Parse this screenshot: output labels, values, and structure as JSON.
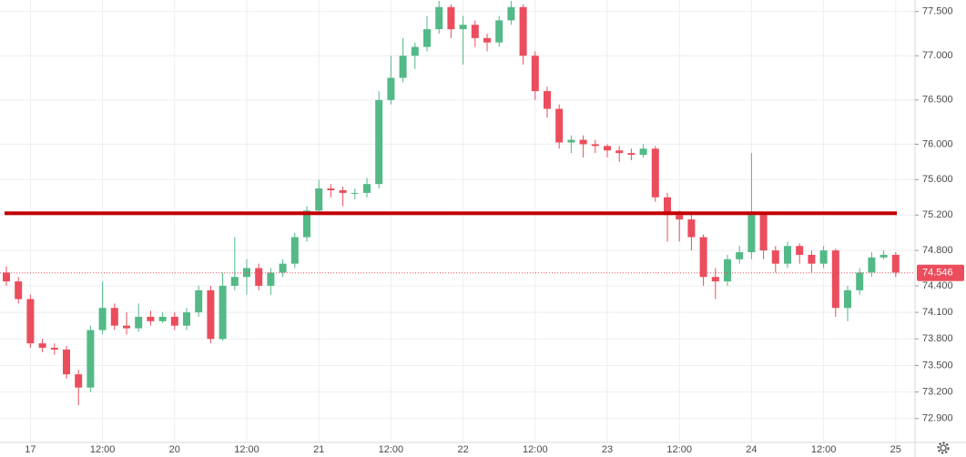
{
  "chart_data": {
    "type": "candlestick",
    "categories": [
      null,
      null,
      "17",
      null,
      null,
      null,
      null,
      null,
      "12:00",
      null,
      null,
      null,
      null,
      null,
      "20",
      null,
      null,
      null,
      null,
      null,
      "12:00",
      null,
      null,
      null,
      null,
      null,
      "21",
      null,
      null,
      null,
      null,
      null,
      "12:00",
      null,
      null,
      null,
      null,
      null,
      "22",
      null,
      null,
      null,
      null,
      null,
      "12:00",
      null,
      null,
      null,
      null,
      null,
      "23",
      null,
      null,
      null,
      null,
      null,
      "12:00",
      null,
      null,
      null,
      null,
      null,
      "24",
      null,
      null,
      null,
      null,
      null,
      "12:00",
      null,
      null,
      null,
      null,
      null,
      "25"
    ],
    "open": [
      74.55,
      74.45,
      74.25,
      73.75,
      73.7,
      73.68,
      73.4,
      73.25,
      73.9,
      74.15,
      73.95,
      73.92,
      74.05,
      74.0,
      74.05,
      73.95,
      74.1,
      74.35,
      73.8,
      74.4,
      74.5,
      74.6,
      74.4,
      74.55,
      74.65,
      74.95,
      75.25,
      75.5,
      75.48,
      75.45,
      75.45,
      75.55,
      76.5,
      76.75,
      77.0,
      77.1,
      77.3,
      77.55,
      77.3,
      77.35,
      77.2,
      77.15,
      77.4,
      77.55,
      77.0,
      76.6,
      76.4,
      76.02,
      76.05,
      76.0,
      75.98,
      75.93,
      75.9,
      75.88,
      75.95,
      75.4,
      75.2,
      75.15,
      74.95,
      74.5,
      74.45,
      74.7,
      74.78,
      75.2,
      74.8,
      74.65,
      74.85,
      74.75,
      74.65,
      74.8,
      74.15,
      74.35,
      74.55,
      74.72,
      74.75
    ],
    "high": [
      74.62,
      74.5,
      74.3,
      73.8,
      73.75,
      73.72,
      73.45,
      73.95,
      74.45,
      74.2,
      74.1,
      74.2,
      74.12,
      74.1,
      74.1,
      74.15,
      74.4,
      74.4,
      74.55,
      74.95,
      74.7,
      74.65,
      74.6,
      74.7,
      75.0,
      75.3,
      75.6,
      75.55,
      75.52,
      75.5,
      75.62,
      76.6,
      77.0,
      77.2,
      77.15,
      77.45,
      77.62,
      77.58,
      77.45,
      77.4,
      77.25,
      77.45,
      77.62,
      77.58,
      77.05,
      76.65,
      76.45,
      76.1,
      76.1,
      76.05,
      76.0,
      75.98,
      75.95,
      76.0,
      75.98,
      75.45,
      75.25,
      75.2,
      74.98,
      74.6,
      74.75,
      74.85,
      75.9,
      75.22,
      74.85,
      74.9,
      74.88,
      74.8,
      74.85,
      74.82,
      74.4,
      74.6,
      74.78,
      74.8,
      74.78
    ],
    "low": [
      74.4,
      74.2,
      73.7,
      73.65,
      73.62,
      73.35,
      73.05,
      73.2,
      73.85,
      73.9,
      73.85,
      73.88,
      73.95,
      73.98,
      73.9,
      73.9,
      74.05,
      73.75,
      73.78,
      74.35,
      74.3,
      74.35,
      74.3,
      74.5,
      74.6,
      74.9,
      75.2,
      75.4,
      75.3,
      75.38,
      75.4,
      75.5,
      76.45,
      76.7,
      76.85,
      77.05,
      77.25,
      77.2,
      76.9,
      77.1,
      77.05,
      77.1,
      77.35,
      76.9,
      76.5,
      76.3,
      75.95,
      75.9,
      75.85,
      75.9,
      75.85,
      75.8,
      75.82,
      75.85,
      75.35,
      74.9,
      74.9,
      74.8,
      74.4,
      74.25,
      74.4,
      74.65,
      74.7,
      74.7,
      74.55,
      74.6,
      74.65,
      74.55,
      74.6,
      74.05,
      74.0,
      74.3,
      74.5,
      74.7,
      74.5
    ],
    "close": [
      74.45,
      74.25,
      73.75,
      73.7,
      73.68,
      73.4,
      73.25,
      73.9,
      74.15,
      73.95,
      73.92,
      74.05,
      74.0,
      74.05,
      73.95,
      74.1,
      74.35,
      73.8,
      74.4,
      74.5,
      74.6,
      74.4,
      74.55,
      74.65,
      74.95,
      75.25,
      75.5,
      75.48,
      75.45,
      75.45,
      75.55,
      76.5,
      76.75,
      77.0,
      77.1,
      77.3,
      77.55,
      77.3,
      77.35,
      77.2,
      77.15,
      77.4,
      77.55,
      77.0,
      76.6,
      76.4,
      76.02,
      76.05,
      76.0,
      75.98,
      75.93,
      75.9,
      75.88,
      75.95,
      75.4,
      75.2,
      75.15,
      74.95,
      74.5,
      74.45,
      74.7,
      74.78,
      75.2,
      74.8,
      74.65,
      74.85,
      74.75,
      74.65,
      74.8,
      74.15,
      74.35,
      74.55,
      74.72,
      74.75,
      74.55
    ],
    "up_color": "#53b987",
    "down_color": "#eb4d5c",
    "ylim": [
      72.63,
      77.63
    ],
    "yticks": [
      {
        "value": 77.5,
        "label": "77.500"
      },
      {
        "value": 77,
        "label": "77.000"
      },
      {
        "value": 76.5,
        "label": "76.500"
      },
      {
        "value": 76,
        "label": "76.000"
      },
      {
        "value": 75.6,
        "label": "75.600"
      },
      {
        "value": 75.2,
        "label": "75.200"
      },
      {
        "value": 74.8,
        "label": "74.800"
      },
      {
        "value": 74.4,
        "label": "74.400"
      },
      {
        "value": 74.1,
        "label": "74.100"
      },
      {
        "value": 73.8,
        "label": "73.800"
      },
      {
        "value": 73.5,
        "label": "73.500"
      },
      {
        "value": 73.2,
        "label": "73.200"
      },
      {
        "value": 72.9,
        "label": "72.900"
      }
    ],
    "grid": true,
    "level_line": {
      "value": 75.22,
      "color": "#c40000"
    },
    "last_price": 74.546,
    "last_price_color": "#eb4d5c"
  }
}
